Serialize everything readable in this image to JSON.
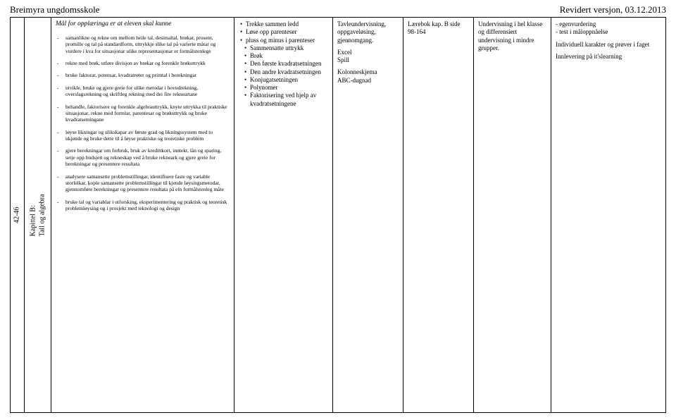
{
  "header": {
    "left": "Breimyra ungdomsskole",
    "right": "Revidert versjon, 03.12.2013"
  },
  "rowLabels": {
    "weeks": "42-46",
    "chapter": "Kapittel B:",
    "chapterTitle": "Tall og algebra"
  },
  "col_goals": {
    "intro": "Mål for opplæringa er at eleven skal kunne",
    "items": [
      "samanlikne og rekne om mellom heile tal, desimaltal, brøkar, prosent, promille og tal på standardform, uttrykkje slike tal på varierte måtar og vurdere i kva for situasjonar ulike representasjonar er formålstenlege",
      "rekne med brøk, utføre divisjon av brøkar og forenkle brøkuttrykk",
      "bruke faktorar, potensar, kvadratrøter og primtal i berekningar",
      "utvikle, bruke og gjere greie for ulike metodar i hovudrekning, overslagsrekning og skriftleg rekning med dei fire rekneartane",
      "behandle, faktorisere og forenkle algebrauttrykk, knyte uttrykka til praktiske situasjonar, rekne med formlar, parentesar og brøkuttrykk og bruke kvadratsetningane",
      "løyse likningar og ulikskapar av første grad og likningssystem med to ukjende og bruke dette til å løyse praktiske og teoretiske problem",
      "gjere berekningar om forbruk, bruk av kredittkort, inntekt, lån og sparing, setje opp budsjett og rekneskap ved å bruke rekneark og gjere greie for berekningar og presentere resultata",
      "analysere samansette problemstillingar, identifisere faste og variable storleikar, kople samansette problemstillingar til kjende løysingsmetodar, gjennomføre berekningar og presentere resultata på ein formålstenleg måte",
      "bruke tal og variablar i utforsking, eksperimentering og praktisk og teoretisk problemløysing og i prosjekt med teknologi og design"
    ]
  },
  "col_topics": [
    "Trekke sammen ledd",
    "Løse opp parenteser",
    "pluss og minus i parenteser",
    "Sammensatte uttrykk",
    "Brøk",
    "Den første kvadratsetningen",
    "Den andre kvadratsetningen",
    "Konjugatsetningen",
    "Polynomer",
    "Faktorisering ved hjelp av kvadratsetningene"
  ],
  "col_methods": {
    "p1": "Tavleundervisning, oppgaveløsing, gjennomgang.",
    "p2": "Excel",
    "p3": "Spill",
    "p4": "Kolonneskjema",
    "p5": "ABC-dugnad"
  },
  "col_book": "Lærebok kap. B side 98-164",
  "col_org": "Undervisning i hel klasse og differensiert undervisning i mindre grupper.",
  "col_assess": {
    "l1": "- egenvurdering",
    "l2": "- test i måloppnåelse",
    "l3": "Individuell karakter og prøver i faget",
    "l4": "Innlevering på it'slearning"
  }
}
